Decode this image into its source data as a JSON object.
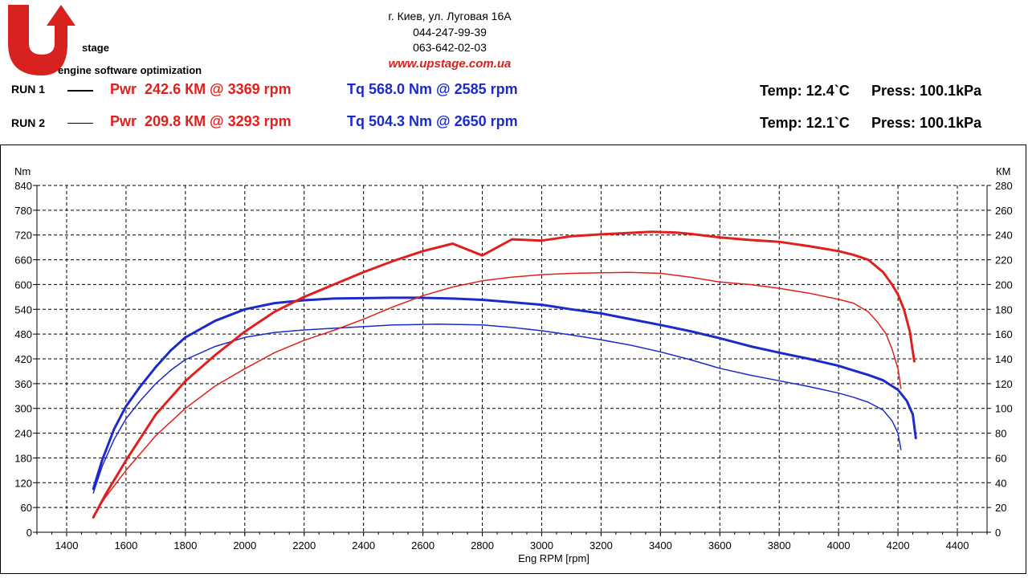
{
  "header": {
    "logo": {
      "text_big": "Upstage",
      "tagline": "engine software optimization"
    },
    "address": "г. Киев, ул. Луговая 16А",
    "phone1": "044-247-99-39",
    "phone2": "063-642-02-03",
    "website": "www.upstage.com.ua"
  },
  "runs": [
    {
      "label": "RUN 1",
      "pwr_prefix": "Pwr",
      "pwr_text": "242.6 КМ @ 3369 rpm",
      "tq_text": "Tq 568.0 Nm @ 2585 rpm",
      "temp_text": "Temp: 12.4`C",
      "press_text": "Press: 100.1kPa"
    },
    {
      "label": "RUN 2",
      "pwr_prefix": "Pwr",
      "pwr_text": "209.8 КМ @ 3293 rpm",
      "tq_text": "Tq 504.3 Nm @ 2650 rpm",
      "temp_text": "Temp: 12.1`C",
      "press_text": "Press: 100.1kPa"
    }
  ],
  "colors": {
    "power": "#e0201c",
    "torque": "#1c2bc8",
    "logo_red": "#d8221f",
    "logo_gray": "#4a4a4a"
  },
  "chart_data": {
    "type": "line",
    "xlabel": "Eng RPM [rpm]",
    "ylabel_left": "Nm",
    "ylabel_right": "КМ",
    "xlim": [
      1300,
      4500
    ],
    "x_ticks": [
      1400,
      1600,
      1800,
      2000,
      2200,
      2400,
      2600,
      2800,
      3000,
      3200,
      3400,
      3600,
      3800,
      4000,
      4200,
      4400
    ],
    "ylim_left": [
      0,
      840
    ],
    "y_ticks_left": [
      0,
      60,
      120,
      180,
      240,
      300,
      360,
      420,
      480,
      540,
      600,
      660,
      720,
      780,
      840
    ],
    "ylim_right": [
      0,
      280
    ],
    "y_ticks_right": [
      0,
      20,
      40,
      60,
      80,
      100,
      120,
      140,
      160,
      180,
      200,
      220,
      240,
      260,
      280
    ],
    "grid": true,
    "series": [
      {
        "run": "RUN 1",
        "kind": "torque",
        "axis": "left",
        "stroke": "thick",
        "x": [
          1490,
          1520,
          1560,
          1600,
          1650,
          1700,
          1750,
          1800,
          1900,
          2000,
          2100,
          2200,
          2300,
          2400,
          2500,
          2585,
          2700,
          2800,
          2900,
          3000,
          3100,
          3200,
          3300,
          3400,
          3500,
          3600,
          3700,
          3800,
          3900,
          4000,
          4050,
          4100,
          4150,
          4200,
          4230,
          4250,
          4260
        ],
        "y": [
          105,
          175,
          250,
          305,
          355,
          400,
          440,
          472,
          512,
          540,
          555,
          562,
          566,
          567,
          568,
          568,
          566,
          563,
          557,
          551,
          540,
          530,
          516,
          502,
          487,
          470,
          451,
          435,
          420,
          403,
          392,
          381,
          368,
          345,
          318,
          285,
          228
        ]
      },
      {
        "run": "RUN 2",
        "kind": "torque",
        "axis": "left",
        "stroke": "thin",
        "x": [
          1490,
          1520,
          1560,
          1600,
          1650,
          1700,
          1750,
          1800,
          1900,
          2000,
          2100,
          2200,
          2300,
          2400,
          2500,
          2650,
          2800,
          2900,
          3000,
          3100,
          3200,
          3300,
          3400,
          3500,
          3600,
          3700,
          3800,
          3900,
          4000,
          4050,
          4100,
          4150,
          4180,
          4200,
          4210
        ],
        "y": [
          95,
          160,
          225,
          275,
          320,
          360,
          392,
          418,
          450,
          472,
          484,
          490,
          494,
          498,
          502,
          504,
          502,
          496,
          488,
          478,
          466,
          453,
          437,
          418,
          397,
          381,
          367,
          353,
          337,
          327,
          315,
          296,
          270,
          240,
          200
        ]
      },
      {
        "run": "RUN 1",
        "kind": "power",
        "axis": "right",
        "stroke": "thick",
        "x": [
          1490,
          1530,
          1600,
          1700,
          1800,
          1900,
          2000,
          2100,
          2200,
          2300,
          2400,
          2500,
          2600,
          2700,
          2800,
          2900,
          3000,
          3100,
          3200,
          3369,
          3450,
          3500,
          3600,
          3700,
          3800,
          3900,
          4000,
          4050,
          4100,
          4150,
          4180,
          4200,
          4220,
          4240,
          4255
        ],
        "y": [
          12,
          30,
          58,
          95,
          122,
          143,
          162,
          178,
          190,
          200,
          210,
          219,
          227,
          233,
          223.5,
          236.5,
          235.5,
          239,
          240.5,
          242.6,
          242,
          241,
          238,
          236,
          234.5,
          231,
          227,
          224,
          220,
          210,
          200,
          192,
          180,
          162,
          138
        ]
      },
      {
        "run": "RUN 2",
        "kind": "power",
        "axis": "right",
        "stroke": "thin",
        "x": [
          1495,
          1530,
          1600,
          1700,
          1800,
          1900,
          2000,
          2100,
          2200,
          2300,
          2400,
          2500,
          2600,
          2700,
          2800,
          2900,
          3000,
          3100,
          3200,
          3293,
          3400,
          3500,
          3600,
          3700,
          3800,
          3900,
          4000,
          4050,
          4100,
          4130,
          4160,
          4180,
          4200,
          4210
        ],
        "y": [
          15,
          28,
          50,
          78,
          100,
          118,
          132,
          145,
          155,
          163,
          172,
          182,
          191,
          198,
          203,
          206,
          208,
          209,
          209.5,
          209.8,
          209,
          206,
          202,
          200,
          197,
          193,
          188,
          185,
          178,
          170,
          160,
          148,
          132,
          116
        ]
      }
    ]
  }
}
